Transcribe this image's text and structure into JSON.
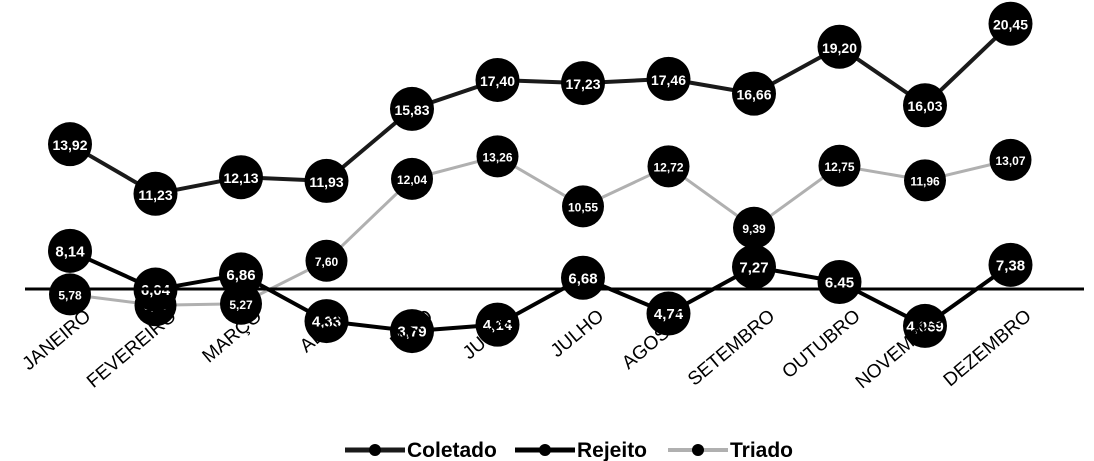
{
  "chart_data": {
    "type": "line",
    "categories": [
      "JANEIRO",
      "FEVEREIRO",
      "MARÇO",
      "ABRIL",
      "MAIO",
      "JUNHO",
      "JULHO",
      "AGOSTO",
      "SETEMBRO",
      "OUTUBRO",
      "NOVEMBRO",
      "DEZEMBRO"
    ],
    "series": [
      {
        "name": "Coletado",
        "color": "#1a1a1a",
        "values": [
          13.92,
          11.23,
          12.13,
          11.93,
          15.83,
          17.4,
          17.23,
          17.46,
          16.66,
          19.2,
          16.03,
          20.45
        ],
        "labels": [
          "13,92",
          "11,23",
          "12,13",
          "11,93",
          "15,83",
          "17,40",
          "17,23",
          "17,46",
          "16,66",
          "19,20",
          "16,03",
          "20,45"
        ]
      },
      {
        "name": "Rejeito",
        "color": "#000000",
        "values": [
          8.14,
          6.04,
          6.86,
          4.33,
          3.79,
          4.14,
          6.68,
          4.74,
          7.27,
          6.45,
          4.069,
          7.38
        ],
        "labels": [
          "8,14",
          "6,04",
          "6,86",
          "4,33",
          "3,79",
          "4,14",
          "6,68",
          "4,74",
          "7,27",
          "6,45",
          "4,069",
          "7,38"
        ]
      },
      {
        "name": "Triado",
        "color": "#aaaaaa",
        "values": [
          5.78,
          5.19,
          5.27,
          7.6,
          12.04,
          13.26,
          10.55,
          12.72,
          9.39,
          12.75,
          11.96,
          13.07
        ],
        "labels": [
          "5,78",
          "5,19",
          "5,27",
          "7,60",
          "12,04",
          "13,26",
          "10,55",
          "12,72",
          "9,39",
          "12,75",
          "11,96",
          "13,07"
        ]
      }
    ],
    "xlabel": "",
    "ylabel": "",
    "legend": "bottom-center",
    "grid": false
  }
}
